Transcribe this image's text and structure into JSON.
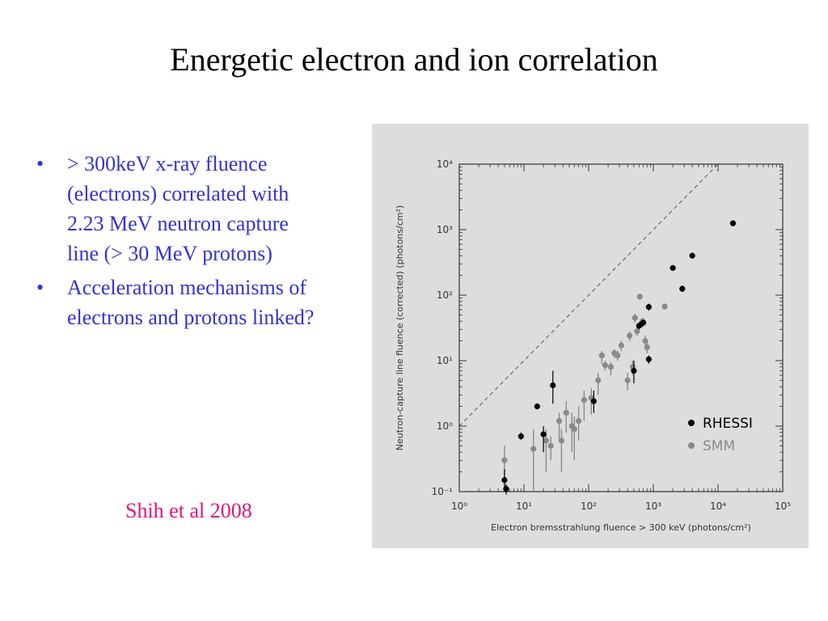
{
  "slide": {
    "title": "Energetic electron and ion correlation",
    "bullets": [
      "> 300keV x-ray fluence (electrons) correlated with 2.23 MeV neutron capture line (> 30 MeV protons)",
      "Acceleration mechanisms of electrons and protons linked?"
    ],
    "citation": "Shih et al 2008"
  },
  "colors": {
    "bullet_text": "#3333cc",
    "citation": "#e0157a",
    "figure_bg": "#dddddd",
    "rhessi": "#000000",
    "smm": "#8a8a8a"
  },
  "chart_data": {
    "type": "scatter",
    "xlabel": "Electron bremsstrahlung fluence > 300 keV (photons/cm²)",
    "ylabel": "Neutron-capture line fluence (corrected) (photons/cm²)",
    "xscale": "log",
    "yscale": "log",
    "xlim": [
      1,
      100000
    ],
    "ylim": [
      0.1,
      10000
    ],
    "x_ticks": [
      {
        "value": 1,
        "label": "10⁰"
      },
      {
        "value": 10,
        "label": "10¹"
      },
      {
        "value": 100,
        "label": "10²"
      },
      {
        "value": 1000,
        "label": "10³"
      },
      {
        "value": 10000,
        "label": "10⁴"
      },
      {
        "value": 100000,
        "label": "10⁵"
      }
    ],
    "y_ticks": [
      {
        "value": 0.1,
        "label": "10⁻¹"
      },
      {
        "value": 1,
        "label": "10⁰"
      },
      {
        "value": 10,
        "label": "10¹"
      },
      {
        "value": 100,
        "label": "10²"
      },
      {
        "value": 1000,
        "label": "10³"
      },
      {
        "value": 10000,
        "label": "10⁴"
      }
    ],
    "reference_line": "y = x",
    "legend": {
      "position": "bottom-right",
      "entries": [
        "RHESSI",
        "SMM"
      ]
    },
    "grid": false,
    "series": [
      {
        "name": "RHESSI",
        "points": [
          {
            "x": 5,
            "y": 0.15,
            "ylo": 0.1,
            "yhi": 0.22
          },
          {
            "x": 5.3,
            "y": 0.11,
            "ylo": 0.09,
            "yhi": 0.13
          },
          {
            "x": 9,
            "y": 0.7,
            "ylo": 0.62,
            "yhi": 0.8
          },
          {
            "x": 16,
            "y": 2.0,
            "ylo": 1.8,
            "yhi": 2.2
          },
          {
            "x": 20,
            "y": 0.75,
            "ylo": 0.4,
            "yhi": 1.0
          },
          {
            "x": 28,
            "y": 4.2,
            "ylo": 2.2,
            "yhi": 7.0
          },
          {
            "x": 120,
            "y": 2.4,
            "ylo": 1.6,
            "yhi": 3.5
          },
          {
            "x": 500,
            "y": 7.0,
            "ylo": 4.5,
            "yhi": 10
          },
          {
            "x": 600,
            "y": 34,
            "ylo": 30,
            "yhi": 38
          },
          {
            "x": 700,
            "y": 38,
            "ylo": 34,
            "yhi": 42
          },
          {
            "x": 650,
            "y": 36,
            "ylo": 32,
            "yhi": 40
          },
          {
            "x": 850,
            "y": 66,
            "ylo": 58,
            "yhi": 74
          },
          {
            "x": 850,
            "y": 10.5,
            "ylo": 9,
            "yhi": 12
          },
          {
            "x": 2000,
            "y": 260,
            "ylo": 240,
            "yhi": 280
          },
          {
            "x": 2800,
            "y": 125,
            "ylo": 112,
            "yhi": 140
          },
          {
            "x": 4000,
            "y": 400,
            "ylo": 370,
            "yhi": 430
          },
          {
            "x": 17000,
            "y": 1250,
            "ylo": 1150,
            "yhi": 1350
          }
        ]
      },
      {
        "name": "SMM",
        "points": [
          {
            "x": 5,
            "y": 0.3,
            "ylo": 0.1,
            "yhi": 0.5
          },
          {
            "x": 14,
            "y": 0.45,
            "ylo": 0.1,
            "yhi": 0.9
          },
          {
            "x": 22,
            "y": 0.6,
            "ylo": 0.2,
            "yhi": 0.9
          },
          {
            "x": 26,
            "y": 0.5,
            "ylo": 0.3,
            "yhi": 0.7
          },
          {
            "x": 35,
            "y": 1.2,
            "ylo": 0.6,
            "yhi": 1.6
          },
          {
            "x": 38,
            "y": 0.6,
            "ylo": 0.2,
            "yhi": 0.9
          },
          {
            "x": 45,
            "y": 1.6,
            "ylo": 0.8,
            "yhi": 2.4
          },
          {
            "x": 55,
            "y": 1.0,
            "ylo": 0.4,
            "yhi": 1.6
          },
          {
            "x": 60,
            "y": 0.9,
            "ylo": 0.3,
            "yhi": 1.4
          },
          {
            "x": 70,
            "y": 1.2,
            "ylo": 0.6,
            "yhi": 2.0
          },
          {
            "x": 85,
            "y": 2.5,
            "ylo": 1.2,
            "yhi": 3.5
          },
          {
            "x": 110,
            "y": 2.7,
            "ylo": 1.5,
            "yhi": 3.8
          },
          {
            "x": 140,
            "y": 5.0,
            "ylo": 3.0,
            "yhi": 6.5
          },
          {
            "x": 160,
            "y": 12,
            "ylo": 9,
            "yhi": 14
          },
          {
            "x": 180,
            "y": 8.5,
            "ylo": 7,
            "yhi": 10
          },
          {
            "x": 220,
            "y": 8.0,
            "ylo": 6,
            "yhi": 9.5
          },
          {
            "x": 250,
            "y": 13,
            "ylo": 11,
            "yhi": 15
          },
          {
            "x": 280,
            "y": 12,
            "ylo": 10,
            "yhi": 14
          },
          {
            "x": 320,
            "y": 17,
            "ylo": 14,
            "yhi": 20
          },
          {
            "x": 400,
            "y": 5.0,
            "ylo": 3.5,
            "yhi": 6.5
          },
          {
            "x": 430,
            "y": 24,
            "ylo": 20,
            "yhi": 28
          },
          {
            "x": 480,
            "y": 8.0,
            "ylo": 6,
            "yhi": 10
          },
          {
            "x": 520,
            "y": 45,
            "ylo": 38,
            "yhi": 52
          },
          {
            "x": 560,
            "y": 28,
            "ylo": 24,
            "yhi": 32
          },
          {
            "x": 620,
            "y": 95,
            "ylo": 85,
            "yhi": 105
          },
          {
            "x": 680,
            "y": 40,
            "ylo": 35,
            "yhi": 45
          },
          {
            "x": 750,
            "y": 20,
            "ylo": 17,
            "yhi": 24
          },
          {
            "x": 800,
            "y": 16,
            "ylo": 13,
            "yhi": 19
          },
          {
            "x": 1500,
            "y": 67,
            "ylo": 60,
            "yhi": 74
          }
        ]
      }
    ]
  }
}
